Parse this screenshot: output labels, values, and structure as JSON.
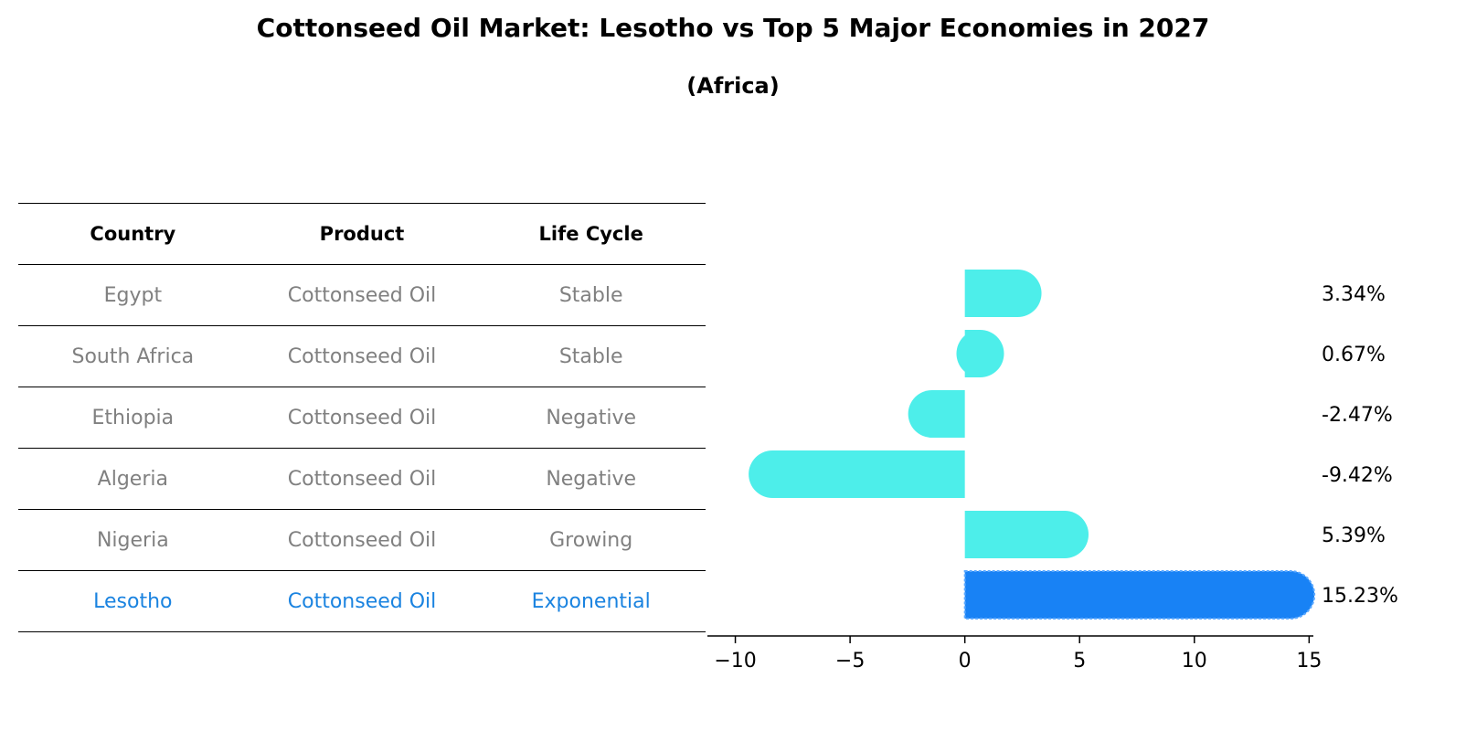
{
  "title": "Cottonseed Oil Market: Lesotho vs Top 5 Major Economies in 2027",
  "subtitle": "(Africa)",
  "table": {
    "headers": [
      "Country",
      "Product",
      "Life Cycle"
    ],
    "rows": [
      {
        "country": "Egypt",
        "product": "Cottonseed Oil",
        "life_cycle": "Stable"
      },
      {
        "country": "South Africa",
        "product": "Cottonseed Oil",
        "life_cycle": "Stable"
      },
      {
        "country": "Ethiopia",
        "product": "Cottonseed Oil",
        "life_cycle": "Negative"
      },
      {
        "country": "Algeria",
        "product": "Cottonseed Oil",
        "life_cycle": "Negative"
      },
      {
        "country": "Nigeria",
        "product": "Cottonseed Oil",
        "life_cycle": "Growing"
      },
      {
        "country": "Lesotho",
        "product": "Cottonseed Oil",
        "life_cycle": "Exponential"
      }
    ],
    "highlight_color": "#1a83e0",
    "text_color": "#808080"
  },
  "chart_data": {
    "type": "bar",
    "orientation": "horizontal",
    "categories": [
      "Egypt",
      "South Africa",
      "Ethiopia",
      "Algeria",
      "Nigeria",
      "Lesotho"
    ],
    "values": [
      3.34,
      0.67,
      -2.47,
      -9.42,
      5.39,
      15.23
    ],
    "value_labels": [
      "3.34%",
      "0.67%",
      "-2.47%",
      "-9.42%",
      "5.39%",
      "15.23%"
    ],
    "highlight_index": 5,
    "colors": {
      "default": "#4deeea",
      "highlight": "#1882f5"
    },
    "xlim": [
      -10.5,
      16.5
    ],
    "xticks": [
      -10,
      -5,
      0,
      5,
      10,
      15
    ],
    "xtick_labels": [
      "−10",
      "−5",
      "0",
      "5",
      "10",
      "15"
    ],
    "grid": false
  }
}
